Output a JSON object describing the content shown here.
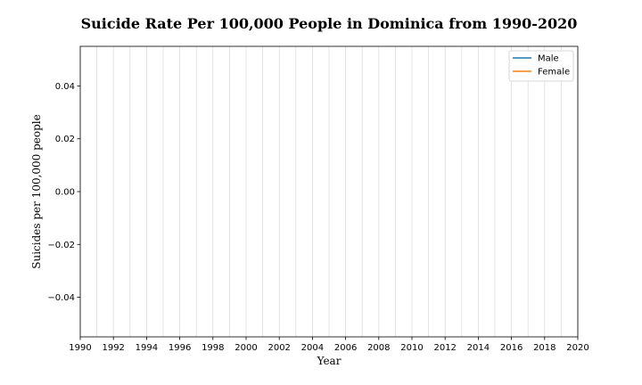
{
  "chart_data": {
    "type": "line",
    "title": "Suicide Rate Per 100,000 People in Dominica from 1990-2020",
    "xlabel": "Year",
    "ylabel": "Suicides per 100,000 people",
    "xlim": [
      1990,
      2020
    ],
    "ylim": [
      -0.055,
      0.055
    ],
    "x_ticks": [
      1990,
      1992,
      1994,
      1996,
      1998,
      2000,
      2002,
      2004,
      2006,
      2008,
      2010,
      2012,
      2014,
      2016,
      2018,
      2020
    ],
    "x_tick_labels": [
      "1990",
      "1992",
      "1994",
      "1996",
      "1998",
      "2000",
      "2002",
      "2004",
      "2006",
      "2008",
      "2010",
      "2012",
      "2014",
      "2016",
      "2018",
      "2020"
    ],
    "y_ticks": [
      0.04,
      0.02,
      0.0,
      -0.02,
      -0.04
    ],
    "y_tick_labels": [
      "0.04",
      "0.02",
      "0.00",
      "−0.02",
      "−0.04"
    ],
    "x_grid": true,
    "y_grid": false,
    "legend_position": "top-right",
    "series": [
      {
        "name": "Male",
        "color": "#1f77b4",
        "values": []
      },
      {
        "name": "Female",
        "color": "#ff7f0e",
        "values": []
      }
    ]
  }
}
